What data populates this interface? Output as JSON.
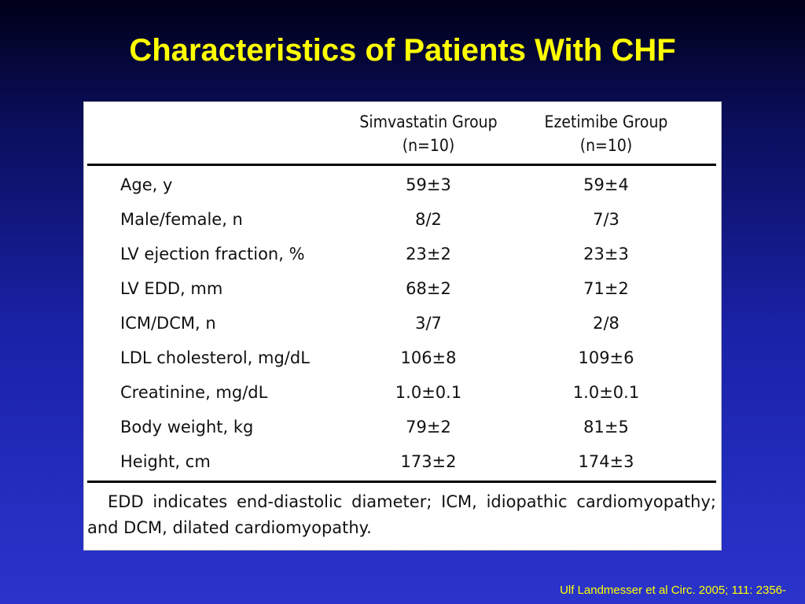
{
  "title": "Characteristics of Patients With CHF",
  "table": {
    "columns": [
      {
        "name": "Simvastatin Group",
        "n": "(n=10)"
      },
      {
        "name": "Ezetimibe Group",
        "n": "(n=10)"
      }
    ],
    "rows": [
      {
        "label": "Age, y",
        "simvastatin": "59±3",
        "ezetimibe": "59±4"
      },
      {
        "label": "Male/female, n",
        "simvastatin": "8/2",
        "ezetimibe": "7/3"
      },
      {
        "label": "LV ejection fraction, %",
        "simvastatin": "23±2",
        "ezetimibe": "23±3"
      },
      {
        "label": "LV EDD, mm",
        "simvastatin": "68±2",
        "ezetimibe": "71±2"
      },
      {
        "label": "ICM/DCM, n",
        "simvastatin": "3/7",
        "ezetimibe": "2/8"
      },
      {
        "label": "LDL cholesterol, mg/dL",
        "simvastatin": "106±8",
        "ezetimibe": "109±6"
      },
      {
        "label": "Creatinine, mg/dL",
        "simvastatin": "1.0±0.1",
        "ezetimibe": "1.0±0.1"
      },
      {
        "label": "Body weight, kg",
        "simvastatin": "79±2",
        "ezetimibe": "81±5"
      },
      {
        "label": "Height, cm",
        "simvastatin": "173±2",
        "ezetimibe": "174±3"
      }
    ],
    "footnote": "EDD indicates end-diastolic diameter; ICM, idiopathic cardiomyopathy; and DCM, dilated cardiomyopathy."
  },
  "citation": "Ulf Landmesser et al Circ. 2005; 111: 2356-",
  "colors": {
    "title": "#ffff00",
    "citation": "#ffff00",
    "table_background": "#ffffff",
    "slide_background_top": "#000018",
    "slide_background_bottom": "#2a34cc"
  }
}
